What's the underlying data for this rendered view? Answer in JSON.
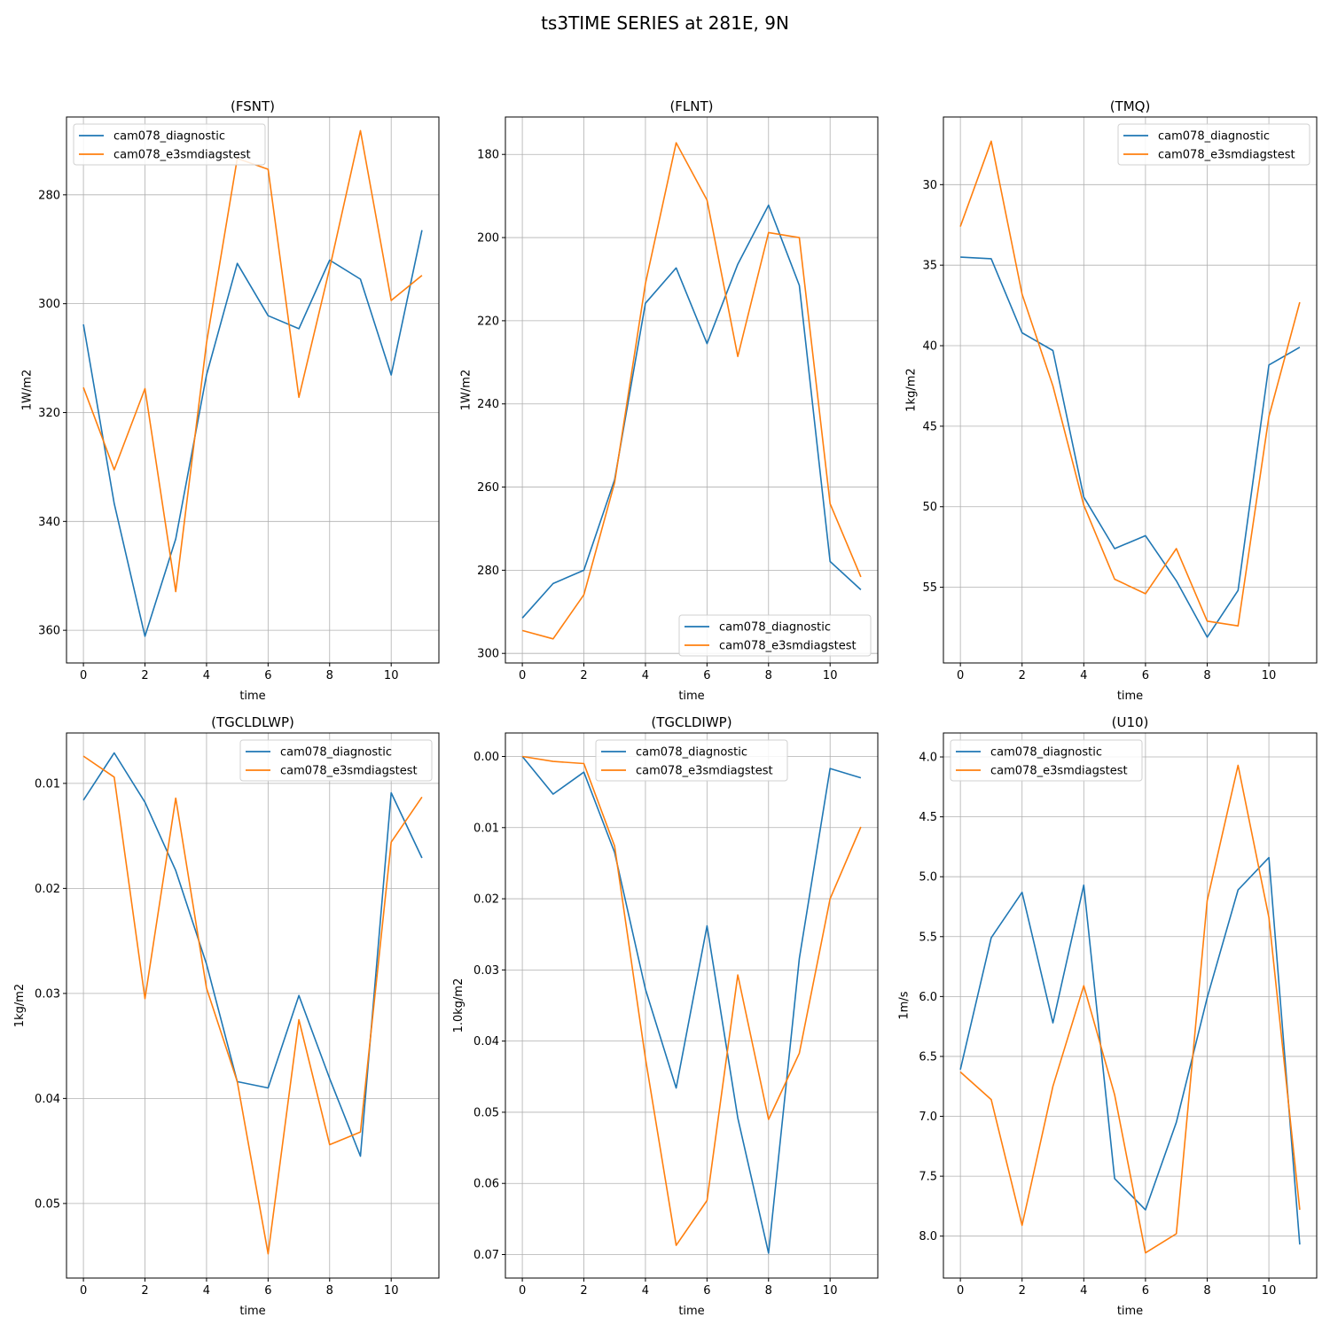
{
  "suptitle": "ts3TIME SERIES at 281E, 9N",
  "colors": {
    "series_1": "#1f77b4",
    "series_2": "#ff7f0e",
    "grid": "#b0b0b0",
    "axes": "#000000"
  },
  "chart_data": [
    {
      "type": "line",
      "title": "(FSNT)",
      "xlabel": "time",
      "ylabel": "1W/m2",
      "xlim": [
        -0.55,
        11.55
      ],
      "xticks": [
        0,
        2,
        4,
        6,
        8,
        10
      ],
      "xtick_labels": [
        "0",
        "2",
        "4",
        "6",
        "8",
        "10"
      ],
      "ylim": [
        265.7,
        366.0
      ],
      "y_inverted": true,
      "yticks": [
        280,
        300,
        320,
        340,
        360
      ],
      "ytick_labels": [
        "280",
        "300",
        "320",
        "340",
        "360"
      ],
      "grid": true,
      "legend_loc": "upper left",
      "x": [
        0,
        1,
        2,
        3,
        4,
        5,
        6,
        7,
        8,
        9,
        10,
        11
      ],
      "series": [
        {
          "name": "cam078_diagnostic",
          "values": [
            303.8,
            336.7,
            361.1,
            343.2,
            313.1,
            292.6,
            302.2,
            304.6,
            292.0,
            295.5,
            313.1,
            286.5
          ]
        },
        {
          "name": "cam078_e3smdiagstest",
          "values": [
            315.4,
            330.5,
            315.6,
            352.9,
            307.2,
            273.3,
            275.3,
            317.2,
            293.5,
            268.2,
            299.4,
            294.8
          ]
        }
      ]
    },
    {
      "type": "line",
      "title": "(FLNT)",
      "xlabel": "time",
      "ylabel": "1W/m2",
      "xlim": [
        -0.55,
        11.55
      ],
      "xticks": [
        0,
        2,
        4,
        6,
        8,
        10
      ],
      "xtick_labels": [
        "0",
        "2",
        "4",
        "6",
        "8",
        "10"
      ],
      "ylim": [
        171.0,
        302.3
      ],
      "y_inverted": true,
      "yticks": [
        180,
        200,
        220,
        240,
        260,
        280,
        300
      ],
      "ytick_labels": [
        "180",
        "200",
        "220",
        "240",
        "260",
        "280",
        "300"
      ],
      "grid": true,
      "legend_loc": "lower right",
      "x": [
        0,
        1,
        2,
        3,
        4,
        5,
        6,
        7,
        8,
        9,
        10,
        11
      ],
      "series": [
        {
          "name": "cam078_diagnostic",
          "values": [
            291.5,
            283.2,
            280.0,
            258.2,
            215.8,
            207.3,
            225.5,
            206.4,
            192.2,
            211.5,
            277.9,
            284.7
          ]
        },
        {
          "name": "cam078_e3smdiagstest",
          "values": [
            294.5,
            296.5,
            285.9,
            258.9,
            211.1,
            177.2,
            191.0,
            228.6,
            198.8,
            200.0,
            264.0,
            281.6
          ]
        }
      ]
    },
    {
      "type": "line",
      "title": "(TMQ)",
      "xlabel": "time",
      "ylabel": "1kg/m2",
      "xlim": [
        -0.55,
        11.55
      ],
      "xticks": [
        0,
        2,
        4,
        6,
        8,
        10
      ],
      "xtick_labels": [
        "0",
        "2",
        "4",
        "6",
        "8",
        "10"
      ],
      "ylim": [
        25.8,
        59.7
      ],
      "y_inverted": true,
      "yticks": [
        30,
        35,
        40,
        45,
        50,
        55
      ],
      "ytick_labels": [
        "30",
        "35",
        "40",
        "45",
        "50",
        "55"
      ],
      "grid": true,
      "legend_loc": "upper right",
      "x": [
        0,
        1,
        2,
        3,
        4,
        5,
        6,
        7,
        8,
        9,
        10,
        11
      ],
      "series": [
        {
          "name": "cam078_diagnostic",
          "values": [
            34.5,
            34.6,
            39.2,
            40.3,
            49.4,
            52.6,
            51.8,
            54.6,
            58.1,
            55.2,
            41.2,
            40.1
          ]
        },
        {
          "name": "cam078_e3smdiagstest",
          "values": [
            32.6,
            27.3,
            36.8,
            42.5,
            49.9,
            54.5,
            55.4,
            52.6,
            57.1,
            57.4,
            44.4,
            37.3
          ]
        }
      ]
    },
    {
      "type": "line",
      "title": "(TGCLDLWP)",
      "xlabel": "time",
      "ylabel": "1kg/m2",
      "xlim": [
        -0.55,
        11.55
      ],
      "xticks": [
        0,
        2,
        4,
        6,
        8,
        10
      ],
      "xtick_labels": [
        "0",
        "2",
        "4",
        "6",
        "8",
        "10"
      ],
      "ylim": [
        0.0052,
        0.0571
      ],
      "y_inverted": true,
      "yticks": [
        0.01,
        0.02,
        0.03,
        0.04,
        0.05
      ],
      "ytick_labels": [
        "0.01",
        "0.02",
        "0.03",
        "0.04",
        "0.05"
      ],
      "grid": true,
      "legend_loc": "upper right",
      "x": [
        0,
        1,
        2,
        3,
        4,
        5,
        6,
        7,
        8,
        9,
        10,
        11
      ],
      "series": [
        {
          "name": "cam078_diagnostic",
          "values": [
            0.0116,
            0.0071,
            0.0118,
            0.0183,
            0.0272,
            0.0384,
            0.039,
            0.0302,
            0.0381,
            0.0455,
            0.0109,
            0.0171
          ]
        },
        {
          "name": "cam078_e3smdiagstest",
          "values": [
            0.0074,
            0.0094,
            0.0305,
            0.0114,
            0.0295,
            0.0384,
            0.0548,
            0.0325,
            0.0444,
            0.0432,
            0.0156,
            0.0113
          ]
        }
      ]
    },
    {
      "type": "line",
      "title": "(TGCLDIWP)",
      "xlabel": "time",
      "ylabel": "1.0kg/m2",
      "xlim": [
        -0.55,
        11.55
      ],
      "xticks": [
        0,
        2,
        4,
        6,
        8,
        10
      ],
      "xtick_labels": [
        "0",
        "2",
        "4",
        "6",
        "8",
        "10"
      ],
      "ylim": [
        -0.0033,
        0.0733
      ],
      "y_inverted": true,
      "yticks": [
        0.0,
        0.01,
        0.02,
        0.03,
        0.04,
        0.05,
        0.06,
        0.07
      ],
      "ytick_labels": [
        "0.00",
        "0.01",
        "0.02",
        "0.03",
        "0.04",
        "0.05",
        "0.06",
        "0.07"
      ],
      "grid": true,
      "legend_loc": "upper center",
      "x": [
        0,
        1,
        2,
        3,
        4,
        5,
        6,
        7,
        8,
        9,
        10,
        11
      ],
      "series": [
        {
          "name": "cam078_diagnostic",
          "values": [
            0.0,
            0.0053,
            0.0022,
            0.0135,
            0.0327,
            0.0466,
            0.0238,
            0.0508,
            0.0698,
            0.0284,
            0.0017,
            0.003
          ]
        },
        {
          "name": "cam078_e3smdiagstest",
          "values": [
            0.0,
            0.0007,
            0.001,
            0.0126,
            0.0424,
            0.0687,
            0.0624,
            0.0307,
            0.051,
            0.0417,
            0.02,
            0.0099
          ]
        }
      ]
    },
    {
      "type": "line",
      "title": "(U10)",
      "xlabel": "time",
      "ylabel": "1m/s",
      "xlim": [
        -0.55,
        11.55
      ],
      "xticks": [
        0,
        2,
        4,
        6,
        8,
        10
      ],
      "xtick_labels": [
        "0",
        "2",
        "4",
        "6",
        "8",
        "10"
      ],
      "ylim": [
        3.8,
        8.35
      ],
      "y_inverted": true,
      "yticks": [
        4.0,
        4.5,
        5.0,
        5.5,
        6.0,
        6.5,
        7.0,
        7.5,
        8.0
      ],
      "ytick_labels": [
        "4.0",
        "4.5",
        "5.0",
        "5.5",
        "6.0",
        "6.5",
        "7.0",
        "7.5",
        "8.0"
      ],
      "grid": true,
      "legend_loc": "upper left",
      "x": [
        0,
        1,
        2,
        3,
        4,
        5,
        6,
        7,
        8,
        9,
        10,
        11
      ],
      "series": [
        {
          "name": "cam078_diagnostic",
          "values": [
            6.61,
            5.51,
            5.13,
            6.22,
            5.07,
            7.52,
            7.78,
            7.05,
            6.01,
            5.11,
            4.84,
            8.07
          ]
        },
        {
          "name": "cam078_e3smdiagstest",
          "values": [
            6.63,
            6.86,
            7.91,
            6.75,
            5.91,
            6.82,
            8.14,
            7.98,
            5.2,
            4.07,
            5.34,
            7.78
          ]
        }
      ]
    }
  ]
}
